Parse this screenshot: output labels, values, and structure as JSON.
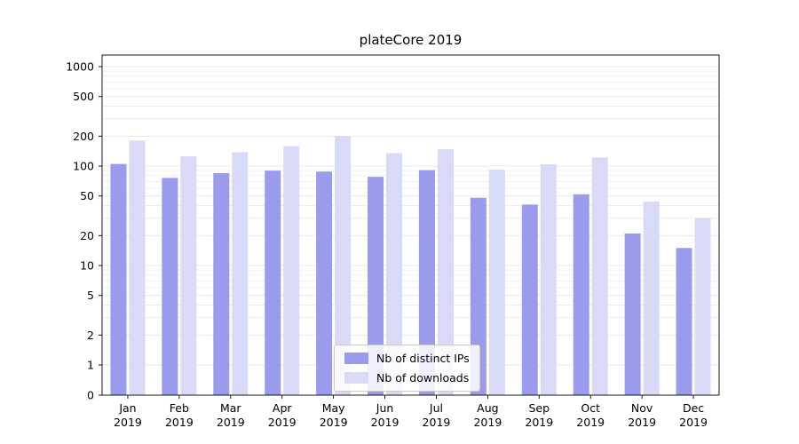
{
  "chart_data": {
    "type": "bar",
    "title": "plateCore 2019",
    "yscale": "symlog",
    "grid": "on",
    "legend_position": "lower center",
    "categories": [
      "Jan 2019",
      "Feb 2019",
      "Mar 2019",
      "Apr 2019",
      "May 2019",
      "Jun 2019",
      "Jul 2019",
      "Aug 2019",
      "Sep 2019",
      "Oct 2019",
      "Nov 2019",
      "Dec 2019"
    ],
    "series": [
      {
        "key": "distinct-ips",
        "name": "Nb of distinct IPs",
        "color": "#9b9bee",
        "values": [
          105,
          76,
          85,
          90,
          88,
          78,
          91,
          48,
          41,
          52,
          21,
          15
        ]
      },
      {
        "key": "downloads",
        "name": "Nb of downloads",
        "color": "#d9d9f8",
        "values": [
          180,
          125,
          138,
          158,
          200,
          135,
          148,
          92,
          104,
          122,
          44,
          30
        ]
      }
    ],
    "yticks": [
      0,
      1,
      2,
      5,
      10,
      20,
      50,
      100,
      200,
      500,
      1000
    ],
    "ylim": [
      0,
      1300
    ],
    "xlabel": "",
    "ylabel": ""
  }
}
